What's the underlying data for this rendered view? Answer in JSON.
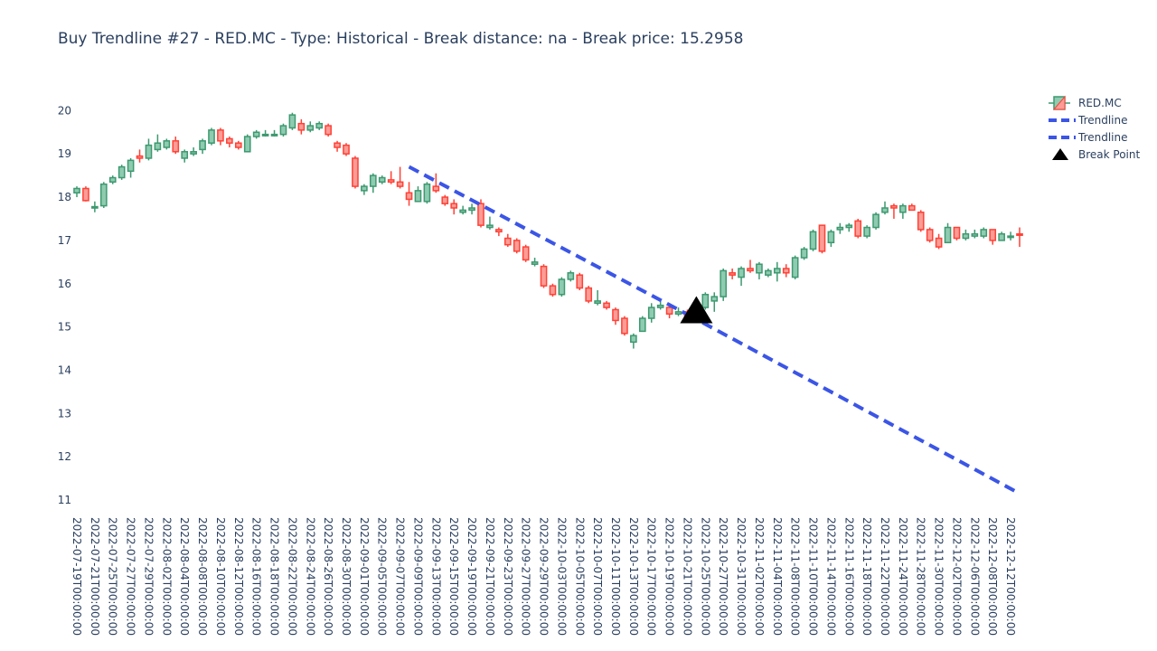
{
  "chart_data": {
    "type": "candlestick",
    "title": "Buy Trendline #27 - RED.MC - Type: Historical - Break distance: na - Break price: 15.2958",
    "ylim": [
      10.75,
      20.55
    ],
    "yticks": [
      11,
      12,
      13,
      14,
      15,
      16,
      17,
      18,
      19,
      20
    ],
    "grid": false,
    "legend_position": "top-right",
    "colors": {
      "up": "#3d9970",
      "down": "#ff4136",
      "trend": "#3b55e6",
      "marker": "#000000"
    },
    "legend": [
      "RED.MC",
      "Trendline",
      "Trendline",
      "Break Point"
    ],
    "xtick_labels": [
      "2022-07-19T00:00:00",
      "2022-07-21T00:00:00",
      "2022-07-25T00:00:00",
      "2022-07-27T00:00:00",
      "2022-07-29T00:00:00",
      "2022-08-02T00:00:00",
      "2022-08-04T00:00:00",
      "2022-08-08T00:00:00",
      "2022-08-10T00:00:00",
      "2022-08-12T00:00:00",
      "2022-08-16T00:00:00",
      "2022-08-18T00:00:00",
      "2022-08-22T00:00:00",
      "2022-08-24T00:00:00",
      "2022-08-26T00:00:00",
      "2022-08-30T00:00:00",
      "2022-09-01T00:00:00",
      "2022-09-05T00:00:00",
      "2022-09-07T00:00:00",
      "2022-09-09T00:00:00",
      "2022-09-13T00:00:00",
      "2022-09-15T00:00:00",
      "2022-09-19T00:00:00",
      "2022-09-21T00:00:00",
      "2022-09-23T00:00:00",
      "2022-09-27T00:00:00",
      "2022-09-29T00:00:00",
      "2022-10-03T00:00:00",
      "2022-10-05T00:00:00",
      "2022-10-07T00:00:00",
      "2022-10-11T00:00:00",
      "2022-10-13T00:00:00",
      "2022-10-17T00:00:00",
      "2022-10-19T00:00:00",
      "2022-10-21T00:00:00",
      "2022-10-25T00:00:00",
      "2022-10-27T00:00:00",
      "2022-10-31T00:00:00",
      "2022-11-02T00:00:00",
      "2022-11-04T00:00:00",
      "2022-11-08T00:00:00",
      "2022-11-10T00:00:00",
      "2022-11-14T00:00:00",
      "2022-11-16T00:00:00",
      "2022-11-18T00:00:00",
      "2022-11-22T00:00:00",
      "2022-11-24T00:00:00",
      "2022-11-28T00:00:00",
      "2022-11-30T00:00:00",
      "2022-12-02T00:00:00",
      "2022-12-06T00:00:00",
      "2022-12-08T00:00:00",
      "2022-12-12T00:00:00"
    ],
    "dates": [
      "2022-07-19",
      "2022-07-20",
      "2022-07-21",
      "2022-07-22",
      "2022-07-25",
      "2022-07-26",
      "2022-07-27",
      "2022-07-28",
      "2022-07-29",
      "2022-08-01",
      "2022-08-02",
      "2022-08-03",
      "2022-08-04",
      "2022-08-05",
      "2022-08-08",
      "2022-08-09",
      "2022-08-10",
      "2022-08-11",
      "2022-08-12",
      "2022-08-15",
      "2022-08-16",
      "2022-08-17",
      "2022-08-18",
      "2022-08-19",
      "2022-08-22",
      "2022-08-23",
      "2022-08-24",
      "2022-08-25",
      "2022-08-26",
      "2022-08-29",
      "2022-08-30",
      "2022-08-31",
      "2022-09-01",
      "2022-09-02",
      "2022-09-05",
      "2022-09-06",
      "2022-09-07",
      "2022-09-08",
      "2022-09-09",
      "2022-09-12",
      "2022-09-13",
      "2022-09-14",
      "2022-09-15",
      "2022-09-16",
      "2022-09-19",
      "2022-09-20",
      "2022-09-21",
      "2022-09-22",
      "2022-09-23",
      "2022-09-26",
      "2022-09-27",
      "2022-09-28",
      "2022-09-29",
      "2022-09-30",
      "2022-10-03",
      "2022-10-04",
      "2022-10-05",
      "2022-10-06",
      "2022-10-07",
      "2022-10-10",
      "2022-10-11",
      "2022-10-12",
      "2022-10-13",
      "2022-10-14",
      "2022-10-17",
      "2022-10-18",
      "2022-10-19",
      "2022-10-20",
      "2022-10-21",
      "2022-10-24",
      "2022-10-25",
      "2022-10-26",
      "2022-10-27",
      "2022-10-28",
      "2022-10-31",
      "2022-11-01",
      "2022-11-02",
      "2022-11-03",
      "2022-11-04",
      "2022-11-07",
      "2022-11-08",
      "2022-11-09",
      "2022-11-10",
      "2022-11-11",
      "2022-11-14",
      "2022-11-15",
      "2022-11-16",
      "2022-11-17",
      "2022-11-18",
      "2022-11-21",
      "2022-11-22",
      "2022-11-23",
      "2022-11-24",
      "2022-11-25",
      "2022-11-28",
      "2022-11-29",
      "2022-11-30",
      "2022-12-01",
      "2022-12-02",
      "2022-12-05",
      "2022-12-06",
      "2022-12-07",
      "2022-12-08",
      "2022-12-09",
      "2022-12-12",
      "2022-12-13"
    ],
    "ohlc": [
      [
        18.1,
        18.25,
        18.0,
        18.2
      ],
      [
        18.2,
        18.25,
        17.9,
        17.92
      ],
      [
        17.75,
        17.9,
        17.65,
        17.78
      ],
      [
        17.8,
        18.35,
        17.75,
        18.3
      ],
      [
        18.35,
        18.5,
        18.3,
        18.45
      ],
      [
        18.45,
        18.75,
        18.4,
        18.7
      ],
      [
        18.6,
        18.9,
        18.45,
        18.85
      ],
      [
        18.95,
        19.1,
        18.8,
        18.9
      ],
      [
        18.9,
        19.35,
        18.85,
        19.2
      ],
      [
        19.1,
        19.45,
        19.05,
        19.25
      ],
      [
        19.15,
        19.35,
        19.1,
        19.3
      ],
      [
        19.3,
        19.4,
        19.0,
        19.05
      ],
      [
        18.9,
        19.1,
        18.8,
        19.05
      ],
      [
        19.0,
        19.15,
        18.95,
        19.05
      ],
      [
        19.1,
        19.35,
        19.0,
        19.3
      ],
      [
        19.25,
        19.6,
        19.2,
        19.55
      ],
      [
        19.55,
        19.6,
        19.2,
        19.3
      ],
      [
        19.35,
        19.4,
        19.15,
        19.25
      ],
      [
        19.25,
        19.3,
        19.1,
        19.15
      ],
      [
        19.05,
        19.45,
        19.05,
        19.4
      ],
      [
        19.4,
        19.55,
        19.35,
        19.5
      ],
      [
        19.45,
        19.55,
        19.4,
        19.45
      ],
      [
        19.45,
        19.55,
        19.4,
        19.45
      ],
      [
        19.45,
        19.7,
        19.4,
        19.65
      ],
      [
        19.6,
        19.95,
        19.55,
        19.9
      ],
      [
        19.7,
        19.8,
        19.45,
        19.55
      ],
      [
        19.55,
        19.75,
        19.5,
        19.65
      ],
      [
        19.6,
        19.75,
        19.55,
        19.7
      ],
      [
        19.65,
        19.7,
        19.4,
        19.45
      ],
      [
        19.25,
        19.3,
        19.05,
        19.15
      ],
      [
        19.2,
        19.25,
        18.95,
        19.0
      ],
      [
        18.9,
        18.95,
        18.2,
        18.25
      ],
      [
        18.15,
        18.3,
        18.05,
        18.25
      ],
      [
        18.25,
        18.55,
        18.1,
        18.5
      ],
      [
        18.35,
        18.5,
        18.3,
        18.45
      ],
      [
        18.4,
        18.6,
        18.3,
        18.35
      ],
      [
        18.35,
        18.7,
        18.2,
        18.25
      ],
      [
        18.1,
        18.35,
        17.8,
        17.95
      ],
      [
        17.9,
        18.25,
        17.9,
        18.15
      ],
      [
        17.9,
        18.35,
        17.85,
        18.3
      ],
      [
        18.25,
        18.55,
        18.1,
        18.15
      ],
      [
        18.0,
        18.05,
        17.8,
        17.85
      ],
      [
        17.85,
        17.95,
        17.6,
        17.75
      ],
      [
        17.65,
        17.8,
        17.6,
        17.7
      ],
      [
        17.7,
        17.85,
        17.6,
        17.75
      ],
      [
        17.85,
        17.95,
        17.3,
        17.35
      ],
      [
        17.3,
        17.55,
        17.25,
        17.35
      ],
      [
        17.25,
        17.3,
        17.1,
        17.2
      ],
      [
        17.05,
        17.15,
        16.85,
        16.9
      ],
      [
        17.0,
        17.05,
        16.7,
        16.75
      ],
      [
        16.85,
        16.9,
        16.5,
        16.55
      ],
      [
        16.45,
        16.6,
        16.4,
        16.5
      ],
      [
        16.4,
        16.45,
        15.9,
        15.95
      ],
      [
        15.95,
        16.0,
        15.7,
        15.75
      ],
      [
        15.75,
        16.15,
        15.7,
        16.1
      ],
      [
        16.1,
        16.3,
        16.05,
        16.25
      ],
      [
        16.2,
        16.25,
        15.85,
        15.9
      ],
      [
        15.9,
        15.95,
        15.55,
        15.6
      ],
      [
        15.55,
        15.85,
        15.5,
        15.6
      ],
      [
        15.55,
        15.6,
        15.4,
        15.45
      ],
      [
        15.4,
        15.45,
        15.05,
        15.15
      ],
      [
        15.2,
        15.25,
        14.8,
        14.85
      ],
      [
        14.65,
        14.85,
        14.5,
        14.8
      ],
      [
        14.9,
        15.25,
        14.9,
        15.2
      ],
      [
        15.2,
        15.55,
        15.1,
        15.45
      ],
      [
        15.45,
        15.65,
        15.4,
        15.5
      ],
      [
        15.45,
        15.55,
        15.2,
        15.3
      ],
      [
        15.3,
        15.45,
        15.25,
        15.35
      ],
      [
        15.35,
        15.4,
        15.2,
        15.25
      ],
      [
        15.3,
        15.55,
        15.25,
        15.45
      ],
      [
        15.45,
        15.8,
        15.4,
        15.75
      ],
      [
        15.6,
        15.8,
        15.35,
        15.7
      ],
      [
        15.7,
        16.35,
        15.6,
        16.3
      ],
      [
        16.25,
        16.35,
        16.1,
        16.2
      ],
      [
        16.15,
        16.4,
        15.95,
        16.35
      ],
      [
        16.35,
        16.55,
        16.25,
        16.3
      ],
      [
        16.25,
        16.5,
        16.1,
        16.45
      ],
      [
        16.2,
        16.35,
        16.15,
        16.3
      ],
      [
        16.25,
        16.5,
        16.05,
        16.35
      ],
      [
        16.35,
        16.45,
        16.15,
        16.25
      ],
      [
        16.15,
        16.65,
        16.1,
        16.6
      ],
      [
        16.6,
        16.85,
        16.55,
        16.8
      ],
      [
        16.8,
        17.25,
        16.75,
        17.2
      ],
      [
        17.35,
        17.35,
        16.7,
        16.75
      ],
      [
        16.95,
        17.25,
        16.85,
        17.2
      ],
      [
        17.25,
        17.4,
        17.15,
        17.3
      ],
      [
        17.3,
        17.4,
        17.2,
        17.35
      ],
      [
        17.45,
        17.5,
        17.05,
        17.1
      ],
      [
        17.1,
        17.35,
        17.05,
        17.3
      ],
      [
        17.3,
        17.65,
        17.25,
        17.6
      ],
      [
        17.65,
        17.9,
        17.6,
        17.75
      ],
      [
        17.8,
        17.85,
        17.5,
        17.75
      ],
      [
        17.65,
        17.85,
        17.5,
        17.8
      ],
      [
        17.8,
        17.85,
        17.7,
        17.7
      ],
      [
        17.65,
        17.7,
        17.2,
        17.25
      ],
      [
        17.25,
        17.3,
        16.95,
        17.0
      ],
      [
        17.05,
        17.15,
        16.8,
        16.85
      ],
      [
        16.95,
        17.4,
        16.95,
        17.3
      ],
      [
        17.3,
        17.3,
        17.0,
        17.05
      ],
      [
        17.05,
        17.25,
        17.0,
        17.15
      ],
      [
        17.1,
        17.25,
        17.05,
        17.15
      ],
      [
        17.1,
        17.3,
        17.05,
        17.25
      ],
      [
        17.25,
        17.25,
        16.9,
        17.0
      ],
      [
        17.0,
        17.2,
        17.0,
        17.15
      ],
      [
        17.1,
        17.2,
        17.0,
        17.1
      ],
      [
        17.15,
        17.3,
        16.85,
        17.12
      ]
    ],
    "trendline_1": {
      "x": [
        "2022-09-08",
        "2022-10-21"
      ],
      "y": [
        18.7,
        15.29
      ]
    },
    "trendline_2": {
      "x": [
        "2022-10-21",
        "2022-12-13"
      ],
      "y": [
        15.29,
        11.15
      ]
    },
    "break_point": {
      "x": "2022-10-24",
      "y": 15.2958
    }
  }
}
